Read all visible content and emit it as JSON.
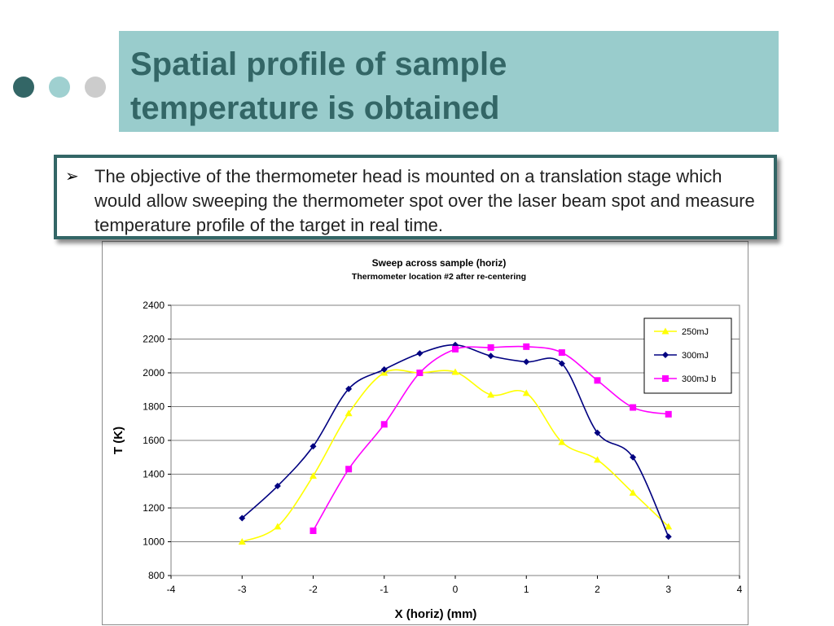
{
  "slide": {
    "title": "Spatial profile of sample\ntemperature is obtained",
    "bullet_symbol": "➢",
    "bullet_text": "The objective of the thermometer head is mounted on a translation stage which would allow sweeping the thermometer spot over the laser beam spot and measure temperature profile of the target in real time.",
    "colors": {
      "title_band": "#99cccc",
      "title_text": "#336666",
      "dot_dark": "#336666",
      "dot_light": "#9fd0d0",
      "dot_gray": "#cccccc",
      "box_border": "#336666"
    }
  },
  "chart_data": {
    "type": "line",
    "title": "Sweep across sample (horiz)",
    "subtitle": "Thermometer location #2 after re-centering",
    "xlabel": "X (horiz) (mm)",
    "ylabel": "T (K)",
    "xlim": [
      -4,
      4
    ],
    "ylim": [
      800,
      2400
    ],
    "xticks": [
      -4,
      -3,
      -2,
      -1,
      0,
      1,
      2,
      3,
      4
    ],
    "yticks": [
      800,
      1000,
      1200,
      1400,
      1600,
      1800,
      2000,
      2200,
      2400
    ],
    "grid": "horizontal",
    "legend_position": "top-right",
    "series": [
      {
        "name": "250mJ",
        "color": "#ffff00",
        "marker": "triangle",
        "x": [
          -3,
          -2.5,
          -2,
          -1.5,
          -1,
          -0.5,
          0,
          0.5,
          1,
          1.5,
          2,
          2.5,
          3
        ],
        "y": [
          1000,
          1090,
          1390,
          1760,
          2000,
          2000,
          2005,
          1870,
          1880,
          1590,
          1485,
          1290,
          1090
        ]
      },
      {
        "name": "300mJ",
        "color": "#000080",
        "marker": "diamond",
        "x": [
          -3,
          -2.5,
          -2,
          -1.5,
          -1,
          -0.5,
          0,
          0.5,
          1,
          1.5,
          2,
          2.5,
          3
        ],
        "y": [
          1140,
          1330,
          1565,
          1905,
          2020,
          2115,
          2165,
          2100,
          2065,
          2055,
          1645,
          1500,
          1030
        ]
      },
      {
        "name": "300mJ b",
        "color": "#ff00ff",
        "marker": "square",
        "x": [
          -2,
          -1.5,
          -1,
          -0.5,
          0,
          0.5,
          1,
          1.5,
          2,
          2.5,
          3
        ],
        "y": [
          1065,
          1430,
          1695,
          2000,
          2140,
          2150,
          2155,
          2120,
          1955,
          1795,
          1755
        ]
      }
    ]
  }
}
